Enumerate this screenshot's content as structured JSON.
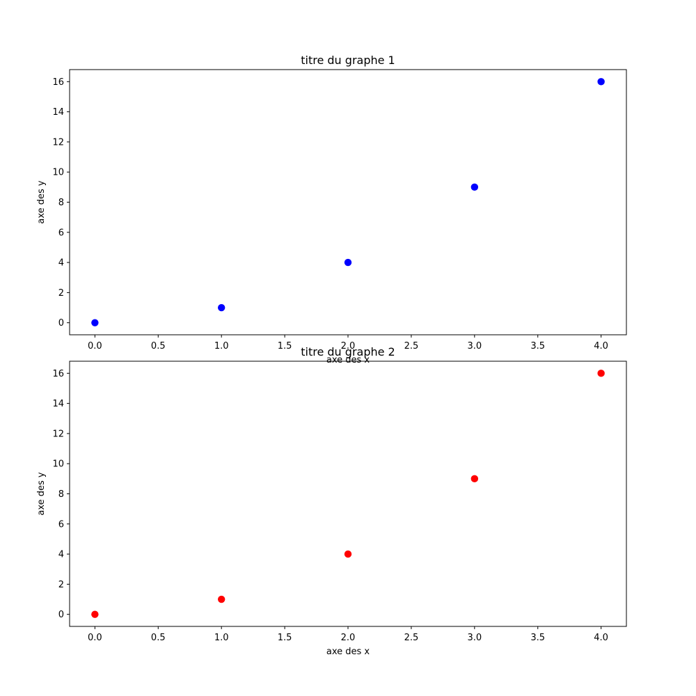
{
  "chart_data": [
    {
      "type": "scatter",
      "title": "titre du graphe 1",
      "xlabel": "axe des x",
      "ylabel": "axe des y",
      "xlim": [
        -0.2,
        4.2
      ],
      "ylim": [
        -0.8,
        16.8
      ],
      "xticks": [
        0.0,
        0.5,
        1.0,
        1.5,
        2.0,
        2.5,
        3.0,
        3.5,
        4.0
      ],
      "xtick_labels": [
        "0.0",
        "0.5",
        "1.0",
        "1.5",
        "2.0",
        "2.5",
        "3.0",
        "3.5",
        "4.0"
      ],
      "yticks": [
        0,
        2,
        4,
        6,
        8,
        10,
        12,
        14,
        16
      ],
      "ytick_labels": [
        "0",
        "2",
        "4",
        "6",
        "8",
        "10",
        "12",
        "14",
        "16"
      ],
      "grid": false,
      "series": [
        {
          "x": [
            0,
            1,
            2,
            3,
            4
          ],
          "y": [
            0,
            1,
            4,
            9,
            16
          ],
          "color": "#0000ff"
        }
      ]
    },
    {
      "type": "scatter",
      "title": "titre du graphe 2",
      "xlabel": "axe des x",
      "ylabel": "axe des y",
      "xlim": [
        -0.2,
        4.2
      ],
      "ylim": [
        -0.8,
        16.8
      ],
      "xticks": [
        0.0,
        0.5,
        1.0,
        1.5,
        2.0,
        2.5,
        3.0,
        3.5,
        4.0
      ],
      "xtick_labels": [
        "0.0",
        "0.5",
        "1.0",
        "1.5",
        "2.0",
        "2.5",
        "3.0",
        "3.5",
        "4.0"
      ],
      "yticks": [
        0,
        2,
        4,
        6,
        8,
        10,
        12,
        14,
        16
      ],
      "ytick_labels": [
        "0",
        "2",
        "4",
        "6",
        "8",
        "10",
        "12",
        "14",
        "16"
      ],
      "grid": false,
      "series": [
        {
          "x": [
            0,
            1,
            2,
            3,
            4
          ],
          "y": [
            0,
            1,
            4,
            9,
            16
          ],
          "color": "#ff0000"
        }
      ]
    }
  ]
}
